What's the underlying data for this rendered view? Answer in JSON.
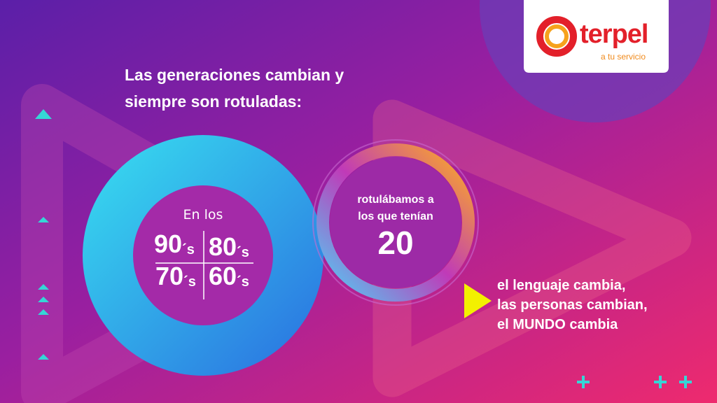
{
  "logo": {
    "name": "terpel",
    "tagline": "a tu servicio"
  },
  "title": [
    "Las generaciones cambian y",
    "siempre son rotuladas:"
  ],
  "intro": "En los",
  "decades": [
    {
      "number": "90",
      "suffix": "´s"
    },
    {
      "number": "80",
      "suffix": "´s"
    },
    {
      "number": "70",
      "suffix": "´s"
    },
    {
      "number": "60",
      "suffix": "´s"
    }
  ],
  "ring": {
    "text": [
      "rotulábamos a",
      "los que tenían"
    ],
    "number": "20"
  },
  "changes": [
    "el lenguaje cambia,",
    "las personas cambian,",
    "el MUNDO cambia"
  ]
}
